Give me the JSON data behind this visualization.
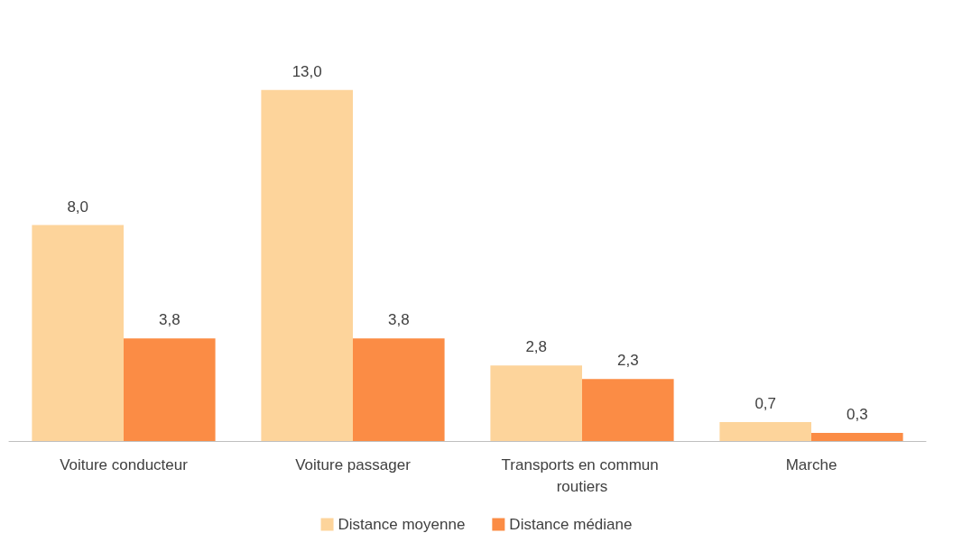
{
  "chart_data": {
    "type": "bar",
    "categories": [
      "Voiture conducteur",
      "Voiture passager",
      "Transports en commun routiers",
      "Marche"
    ],
    "series": [
      {
        "name": "Distance moyenne",
        "color": "#fdd49b",
        "values": [
          8.0,
          13.0,
          2.8,
          0.7
        ],
        "value_labels": [
          "8,0",
          "13,0",
          "2,8",
          "0,7"
        ]
      },
      {
        "name": "Distance médiane",
        "color": "#fb8c45",
        "values": [
          3.8,
          3.8,
          2.3,
          0.3
        ],
        "value_labels": [
          "3,8",
          "3,8",
          "2,3",
          "0,3"
        ]
      }
    ],
    "legend": "bottom"
  }
}
